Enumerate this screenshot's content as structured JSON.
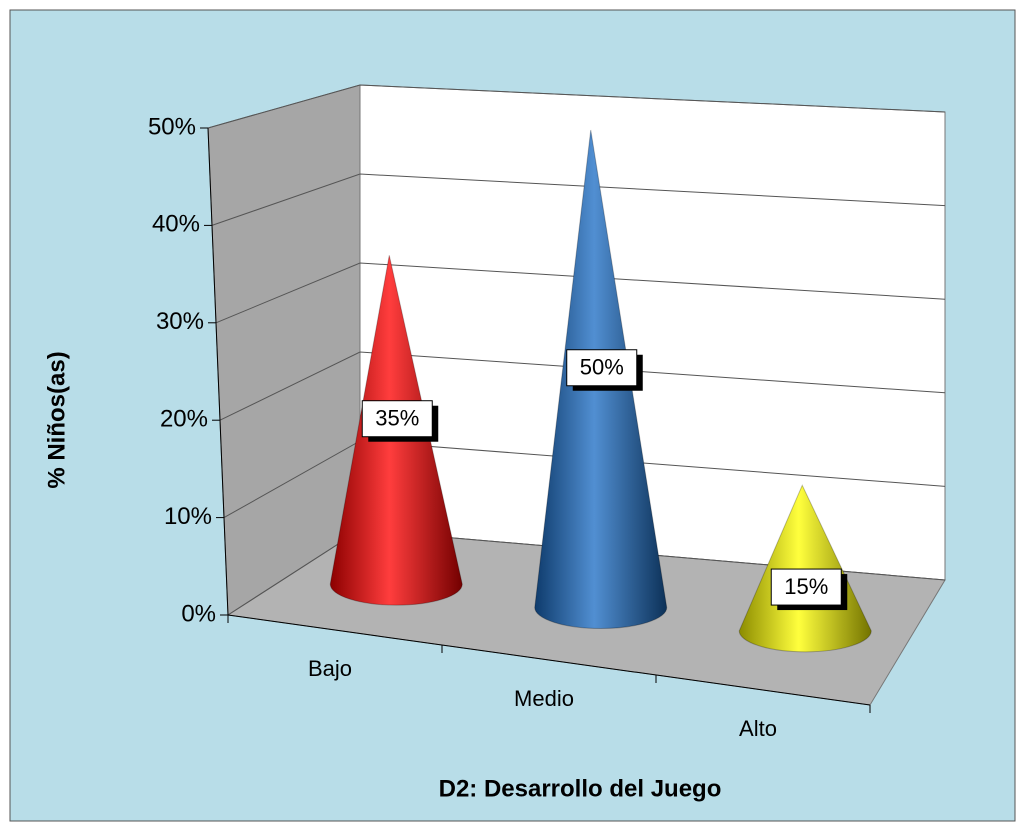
{
  "chart_data": {
    "type": "cone3d",
    "categories": [
      "Bajo",
      "Medio",
      "Alto"
    ],
    "values": [
      35,
      50,
      15
    ],
    "value_labels": [
      "35%",
      "50%",
      "15%"
    ],
    "colors": [
      "#ff0000",
      "#1a6cc4",
      "#ffff00"
    ],
    "ylim": [
      0,
      50
    ],
    "yticks": [
      {
        "value": 0,
        "label": "0%"
      },
      {
        "value": 10,
        "label": "10%"
      },
      {
        "value": 20,
        "label": "20%"
      },
      {
        "value": 30,
        "label": "30%"
      },
      {
        "value": 40,
        "label": "40%"
      },
      {
        "value": 50,
        "label": "50%"
      }
    ],
    "xlabel": "D2: Desarrollo del Juego",
    "ylabel": "% Niños(as)",
    "grid": true
  }
}
